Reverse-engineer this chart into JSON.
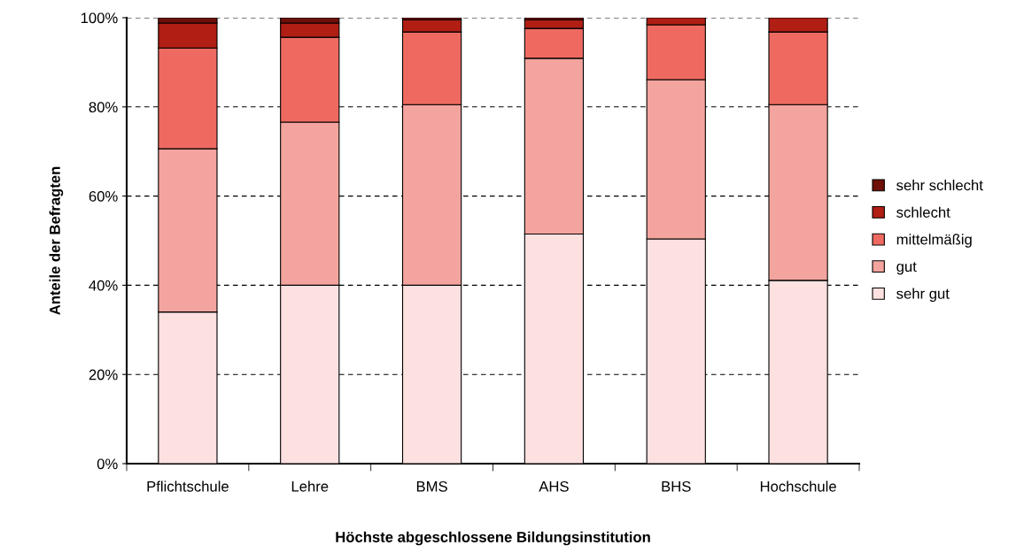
{
  "chart_data": {
    "type": "bar",
    "stacked": true,
    "xlabel": "Höchste abgeschlossene Bildungsinstitution",
    "ylabel": "Anteile der Befragten",
    "categories": [
      "Pflichtschule",
      "Lehre",
      "BMS",
      "AHS",
      "BHS",
      "Hochschule"
    ],
    "series": [
      {
        "name": "sehr gut",
        "color": "#fde0e0",
        "values": [
          34,
          40,
          40,
          51.5,
          50.4,
          41.1
        ]
      },
      {
        "name": "gut",
        "color": "#f4a49e",
        "values": [
          36.6,
          36.6,
          40.5,
          39.4,
          35.7,
          39.4
        ]
      },
      {
        "name": "mittelmäßig",
        "color": "#ee6a60",
        "values": [
          22.6,
          19,
          16.3,
          6.7,
          12.3,
          16.3
        ]
      },
      {
        "name": "schlecht",
        "color": "#b01e14",
        "values": [
          5.6,
          3.2,
          2.7,
          1.9,
          1.6,
          3.2
        ]
      },
      {
        "name": "sehr schlecht",
        "color": "#6e1008",
        "values": [
          1.2,
          1.2,
          0.5,
          0.5,
          0,
          0
        ]
      }
    ],
    "ylim": [
      0,
      100
    ],
    "yticks": [
      {
        "value": 0,
        "label": "0%"
      },
      {
        "value": 20,
        "label": "20%"
      },
      {
        "value": 40,
        "label": "40%"
      },
      {
        "value": 60,
        "label": "60%"
      },
      {
        "value": 80,
        "label": "80%"
      },
      {
        "value": 100,
        "label": "100%"
      }
    ],
    "grid": "y",
    "legend": "right"
  }
}
